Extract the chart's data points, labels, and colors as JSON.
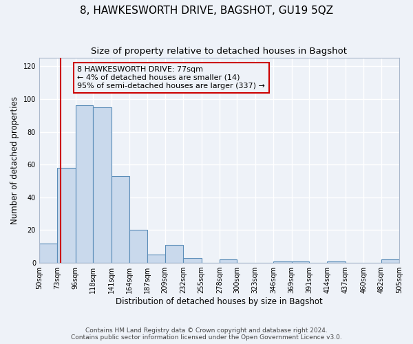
{
  "title": "8, HAWKESWORTH DRIVE, BAGSHOT, GU19 5QZ",
  "subtitle": "Size of property relative to detached houses in Bagshot",
  "xlabel": "Distribution of detached houses by size in Bagshot",
  "ylabel": "Number of detached properties",
  "bin_edges": [
    50,
    73,
    96,
    118,
    141,
    164,
    187,
    209,
    232,
    255,
    278,
    300,
    323,
    346,
    369,
    391,
    414,
    437,
    460,
    482,
    505
  ],
  "bar_heights": [
    12,
    58,
    96,
    95,
    53,
    20,
    5,
    11,
    3,
    0,
    2,
    0,
    0,
    1,
    1,
    0,
    1,
    0,
    0,
    2
  ],
  "tick_labels": [
    "50sqm",
    "73sqm",
    "96sqm",
    "118sqm",
    "141sqm",
    "164sqm",
    "187sqm",
    "209sqm",
    "232sqm",
    "255sqm",
    "278sqm",
    "300sqm",
    "323sqm",
    "346sqm",
    "369sqm",
    "391sqm",
    "414sqm",
    "437sqm",
    "460sqm",
    "482sqm",
    "505sqm"
  ],
  "bar_color": "#c9d9ec",
  "bar_edge_color": "#5b8db8",
  "vline_x": 77,
  "vline_color": "#cc0000",
  "annotation_lines": [
    "8 HAWKESWORTH DRIVE: 77sqm",
    "← 4% of detached houses are smaller (14)",
    "95% of semi-detached houses are larger (337) →"
  ],
  "annotation_box_color": "#cc0000",
  "ylim": [
    0,
    125
  ],
  "yticks": [
    0,
    20,
    40,
    60,
    80,
    100,
    120
  ],
  "footer_line1": "Contains HM Land Registry data © Crown copyright and database right 2024.",
  "footer_line2": "Contains public sector information licensed under the Open Government Licence v3.0.",
  "bg_color": "#eef2f8",
  "plot_bg_color": "#eef2f8",
  "grid_color": "#ffffff",
  "title_fontsize": 11,
  "subtitle_fontsize": 9.5,
  "tick_fontsize": 7,
  "ylabel_fontsize": 8.5,
  "xlabel_fontsize": 8.5,
  "annotation_fontsize": 8,
  "footer_fontsize": 6.5
}
